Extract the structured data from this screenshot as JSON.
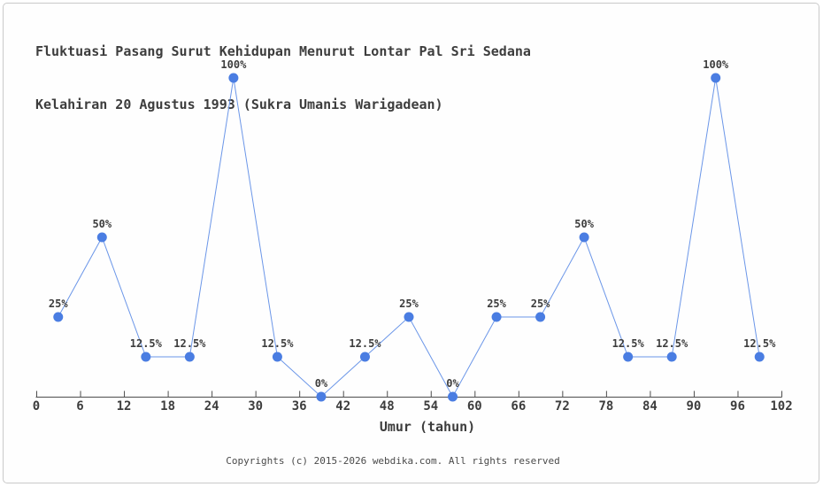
{
  "page": {
    "title_line1": "Fluktuasi Pasang Surut Kehidupan Menurut Lontar Pal Sri Sedana",
    "title_line2": "Kelahiran 20 Agustus 1993 (Sukra Umanis Warigadean)"
  },
  "footer": {
    "copyright": "Copyrights (c) 2015-2026 webdika.com. All rights reserved"
  },
  "chart_data": {
    "type": "line",
    "title": "Fluktuasi Pasang Surut Kehidupan Menurut Lontar Pal Sri Sedana Kelahiran 20 Agustus 1993 (Sukra Umanis Warigadean)",
    "xlabel": "Umur (tahun)",
    "ylabel": "",
    "x": [
      3,
      9,
      15,
      21,
      27,
      33,
      39,
      45,
      51,
      57,
      63,
      69,
      75,
      81,
      87,
      93,
      99
    ],
    "values": [
      25,
      50,
      12.5,
      12.5,
      100,
      12.5,
      0,
      12.5,
      25,
      0,
      25,
      25,
      50,
      12.5,
      12.5,
      100,
      12.5
    ],
    "point_labels": [
      "25%",
      "50%",
      "12.5%",
      "12.5%",
      "100%",
      "12.5%",
      "0%",
      "12.5%",
      "25%",
      "0%",
      "25%",
      "25%",
      "50%",
      "12.5%",
      "12.5%",
      "100%",
      "12.5%"
    ],
    "x_ticks": [
      0,
      6,
      12,
      18,
      24,
      30,
      36,
      42,
      48,
      54,
      60,
      66,
      72,
      78,
      84,
      90,
      96,
      102
    ],
    "xlim": [
      0,
      102
    ],
    "ylim": [
      0,
      100
    ],
    "grid": false,
    "legend": "none",
    "colors": {
      "line": "#6b96e8",
      "marker": "#4a7de2",
      "axis": "#4d4d4d",
      "label": "#3d3d3d"
    }
  }
}
